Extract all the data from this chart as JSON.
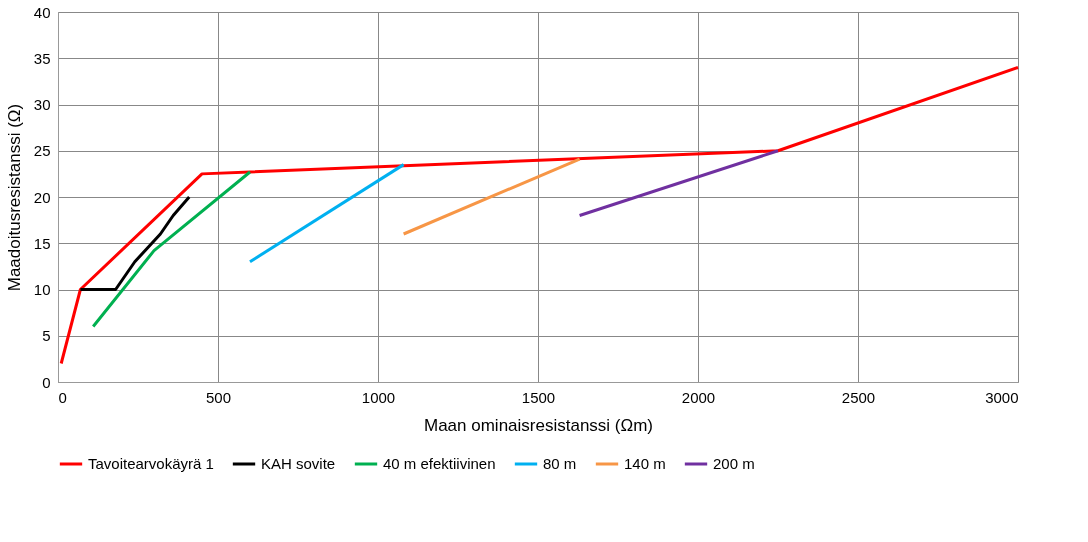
{
  "chart_data": {
    "type": "line",
    "xlabel": "Maan ominaisresistanssi (Ωm)",
    "ylabel": "Maadoitusresistanssi (Ω)",
    "xlim": [
      0,
      3000
    ],
    "xticks": [
      0,
      500,
      1000,
      1500,
      2000,
      2500,
      3000
    ],
    "ylim": [
      0,
      40
    ],
    "yticks": [
      0,
      5,
      10,
      15,
      20,
      25,
      30,
      35,
      40
    ],
    "grid": true,
    "legend": "bottom",
    "line_style": "solid",
    "marker": "none",
    "series": [
      {
        "name": "Tavoitearvokäyrä 1",
        "color": "#ff0000",
        "x": [
          10,
          70,
          450,
          2250,
          3000
        ],
        "values": [
          2,
          10,
          22.5,
          25,
          34
        ]
      },
      {
        "name": "KAH sovite",
        "color": "#000000",
        "x": [
          70,
          180,
          240,
          320,
          360,
          410
        ],
        "values": [
          10,
          10,
          13,
          16,
          18,
          20
        ]
      },
      {
        "name": "40 m efektiivinen",
        "color": "#00b050",
        "x": [
          110,
          300,
          600
        ],
        "values": [
          6,
          14.2,
          22.7
        ]
      },
      {
        "name": "80 m",
        "color": "#00b0f0",
        "x": [
          600,
          1080
        ],
        "values": [
          13,
          23.5
        ]
      },
      {
        "name": "140 m",
        "color": "#f79646",
        "x": [
          1080,
          1630
        ],
        "values": [
          16,
          24.1
        ]
      },
      {
        "name": "200 m",
        "color": "#7030a0",
        "x": [
          1630,
          2250
        ],
        "values": [
          18,
          25
        ]
      }
    ]
  }
}
